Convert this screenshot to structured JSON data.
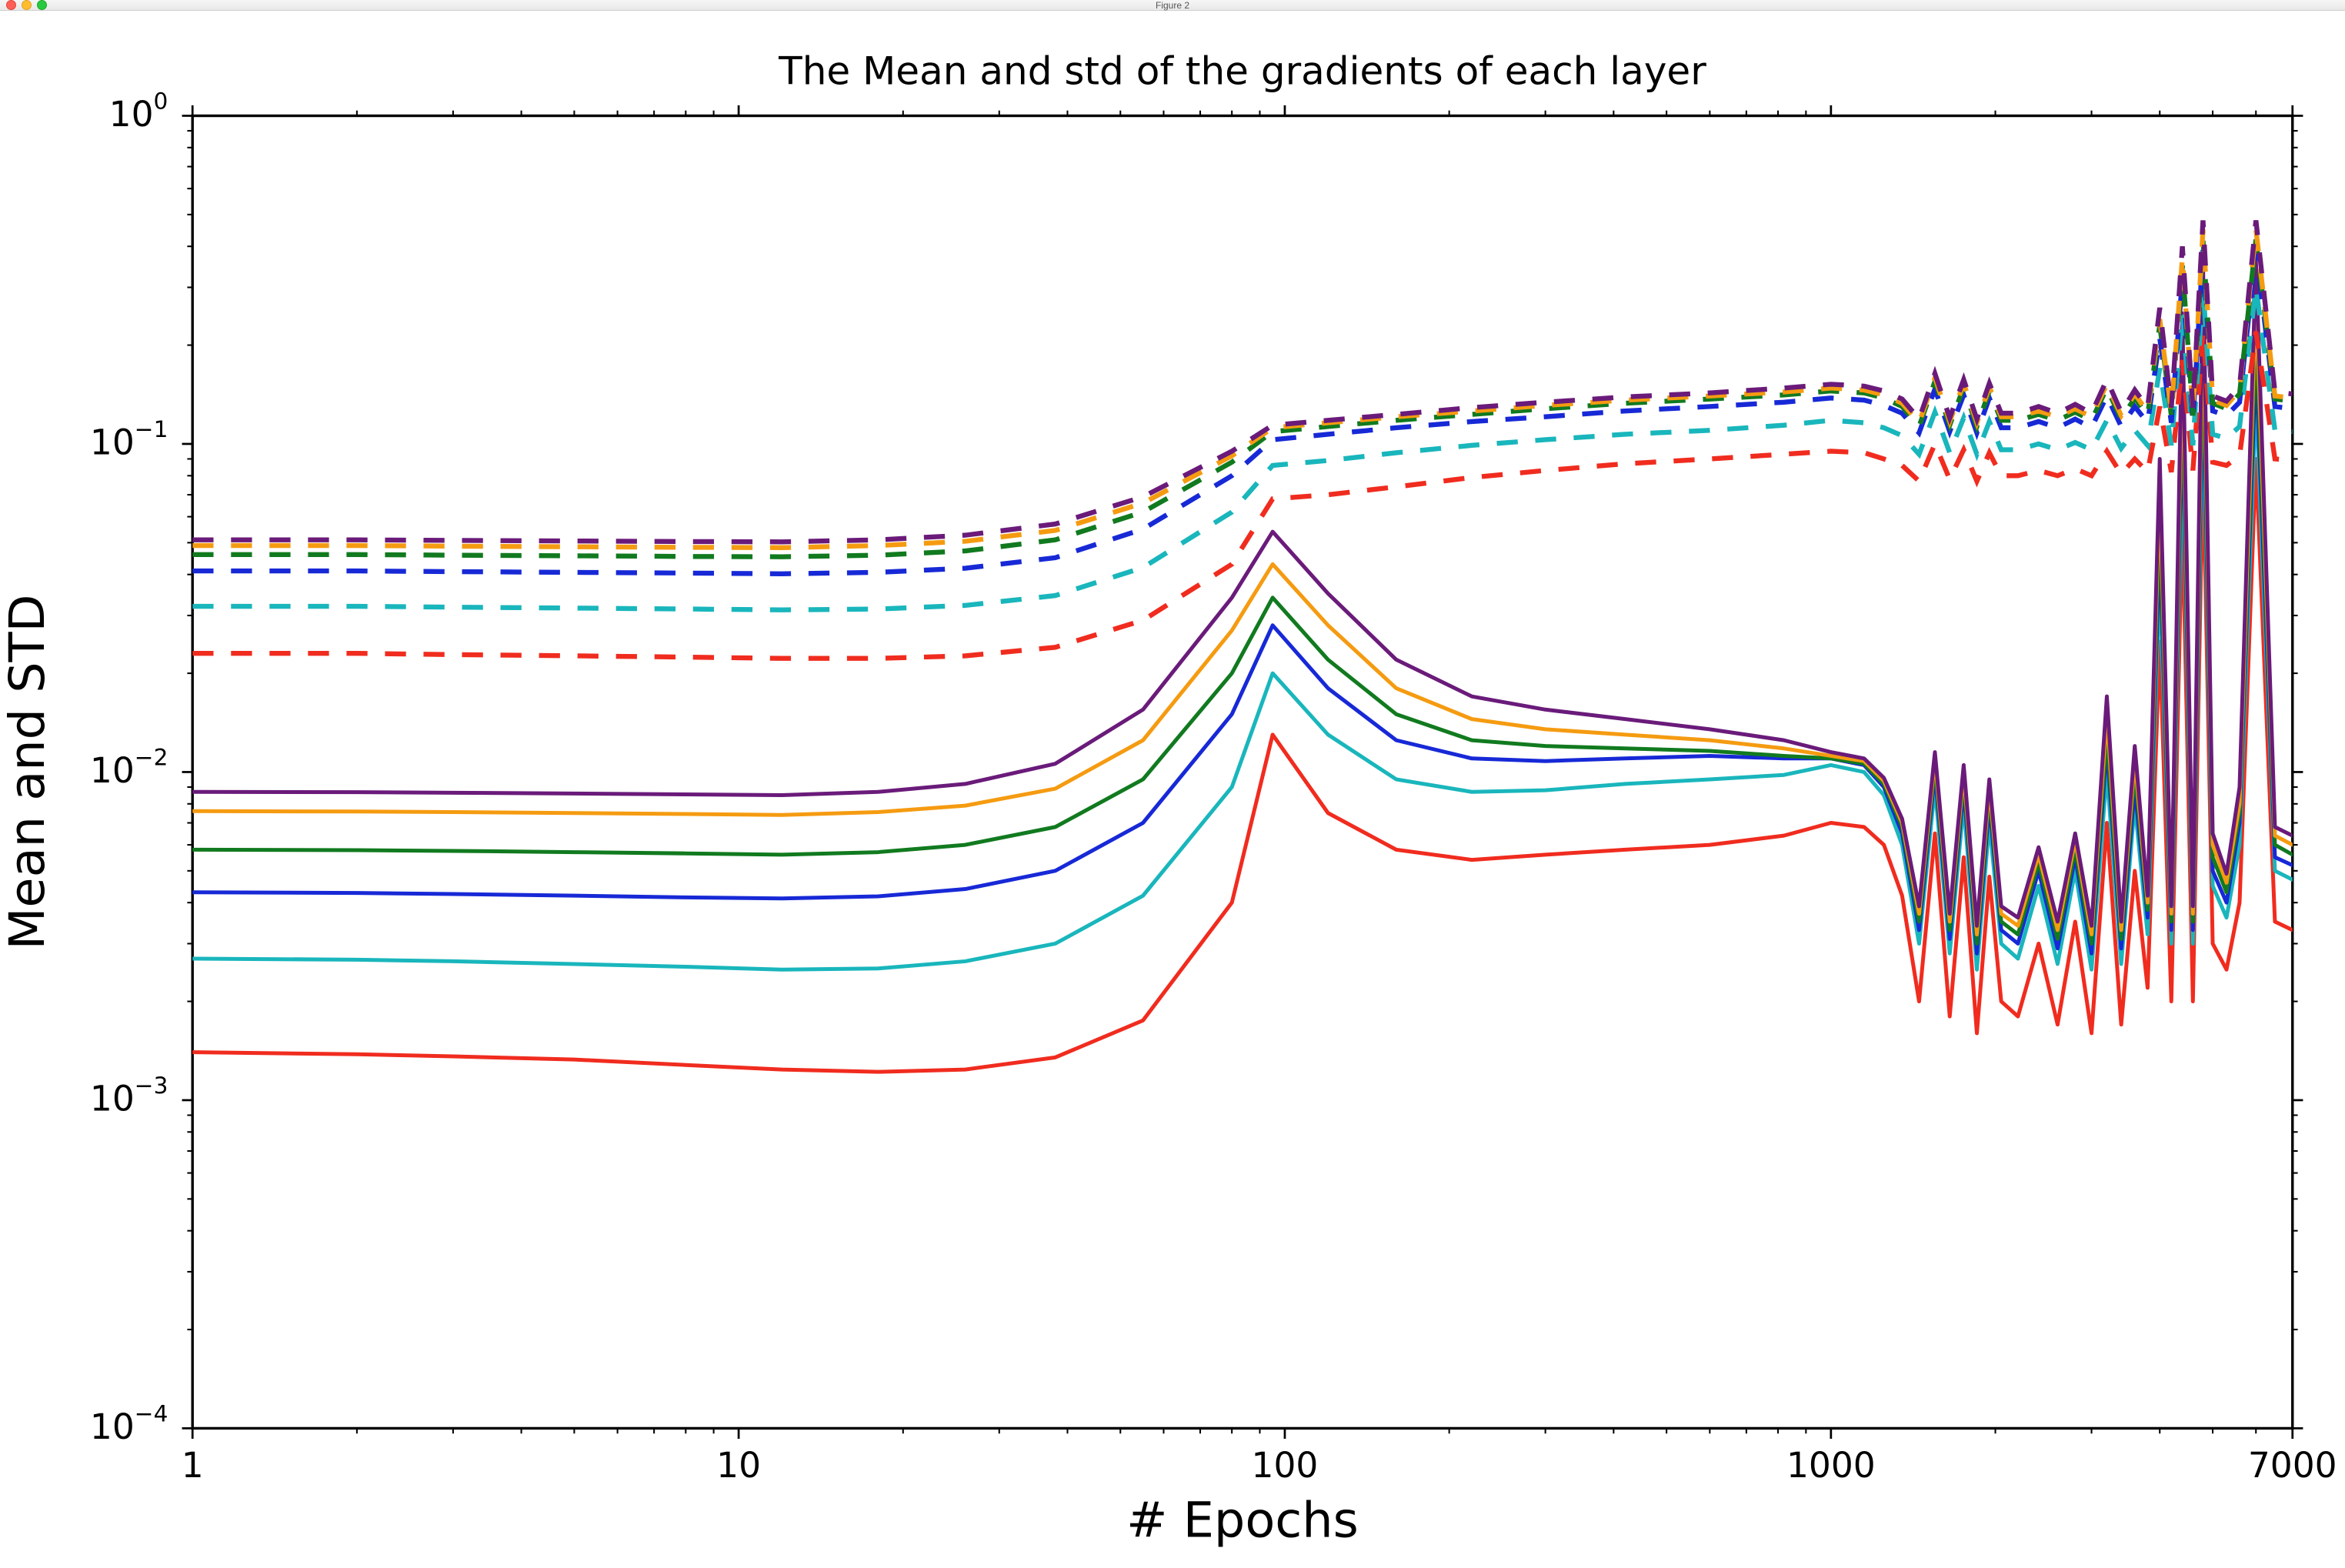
{
  "window": {
    "title": "Figure 2",
    "traffic_light_colors": {
      "red": "#ff5f57",
      "yellow": "#ffbd2e",
      "green": "#28c940"
    }
  },
  "chart": {
    "type": "line",
    "title": "The Mean and std of the gradients of each layer",
    "xlabel": "# Epochs",
    "ylabel": "Mean and STD",
    "title_fontsize": 22,
    "label_fontsize": 28,
    "tick_fontsize": 20,
    "background_color": "#ffffff",
    "axis_color": "#000000",
    "x_scale": "log",
    "y_scale": "log",
    "xlim": [
      1,
      7000
    ],
    "ylim": [
      0.0001,
      1
    ],
    "xticks": [
      1,
      10,
      100,
      1000,
      7000
    ],
    "xtick_labels": [
      "1",
      "10",
      "100",
      "1000",
      "7000"
    ],
    "yticks": [
      0.0001,
      0.001,
      0.01,
      0.1,
      1
    ],
    "ytick_labels_base": "10",
    "ytick_labels_exp": [
      "−4",
      "−3",
      "−2",
      "−1",
      "0"
    ],
    "solid_line_width": 2.2,
    "dashed_line_width": 2.8,
    "dash_pattern": "12,10",
    "series_colors": {
      "red": "#f02c1f",
      "cyan": "#19b6bc",
      "blue": "#1729d6",
      "green": "#117a1f",
      "orange": "#f59b11",
      "purple": "#6a1b7a"
    },
    "x_epochs": [
      1,
      2,
      3,
      5,
      8,
      12,
      18,
      26,
      38,
      55,
      80,
      95,
      120,
      160,
      220,
      300,
      420,
      600,
      820,
      1000,
      1150,
      1250,
      1350,
      1450,
      1550,
      1650,
      1750,
      1850,
      1950,
      2050,
      2200,
      2400,
      2600,
      2800,
      3000,
      3200,
      3400,
      3600,
      3800,
      4000,
      4200,
      4400,
      4600,
      4800,
      5000,
      5300,
      5600,
      6000,
      6500,
      7000
    ],
    "series_solid": {
      "red": [
        0.0014,
        0.00138,
        0.00136,
        0.00133,
        0.00128,
        0.00124,
        0.00122,
        0.00124,
        0.00135,
        0.00175,
        0.004,
        0.013,
        0.0075,
        0.0058,
        0.0054,
        0.0056,
        0.0058,
        0.006,
        0.0064,
        0.007,
        0.0068,
        0.006,
        0.0042,
        0.002,
        0.0065,
        0.0018,
        0.0055,
        0.0016,
        0.0048,
        0.002,
        0.0018,
        0.003,
        0.0017,
        0.0035,
        0.0016,
        0.007,
        0.0017,
        0.005,
        0.0022,
        0.025,
        0.002,
        0.06,
        0.002,
        0.09,
        0.003,
        0.0025,
        0.004,
        0.09,
        0.0035,
        0.0033
      ],
      "cyan": [
        0.0027,
        0.00268,
        0.00265,
        0.0026,
        0.00255,
        0.0025,
        0.00252,
        0.00265,
        0.003,
        0.0042,
        0.009,
        0.02,
        0.013,
        0.0095,
        0.0087,
        0.0088,
        0.0092,
        0.0095,
        0.0098,
        0.0105,
        0.01,
        0.0085,
        0.006,
        0.003,
        0.009,
        0.0028,
        0.008,
        0.0025,
        0.007,
        0.003,
        0.0027,
        0.0045,
        0.0026,
        0.005,
        0.0025,
        0.01,
        0.0026,
        0.008,
        0.0032,
        0.04,
        0.003,
        0.1,
        0.003,
        0.14,
        0.0045,
        0.0036,
        0.006,
        0.14,
        0.005,
        0.0047
      ],
      "blue": [
        0.0043,
        0.00428,
        0.00425,
        0.0042,
        0.00415,
        0.00412,
        0.00418,
        0.0044,
        0.005,
        0.007,
        0.015,
        0.028,
        0.018,
        0.0125,
        0.011,
        0.0108,
        0.011,
        0.0112,
        0.011,
        0.011,
        0.0105,
        0.009,
        0.0065,
        0.0033,
        0.01,
        0.0031,
        0.009,
        0.0028,
        0.008,
        0.0033,
        0.003,
        0.005,
        0.0029,
        0.0055,
        0.0028,
        0.012,
        0.0029,
        0.009,
        0.0036,
        0.05,
        0.0033,
        0.13,
        0.0033,
        0.18,
        0.005,
        0.004,
        0.007,
        0.18,
        0.0055,
        0.0052
      ],
      "green": [
        0.0058,
        0.00578,
        0.00575,
        0.0057,
        0.00565,
        0.0056,
        0.0057,
        0.006,
        0.0068,
        0.0095,
        0.02,
        0.034,
        0.022,
        0.015,
        0.0125,
        0.012,
        0.0118,
        0.0116,
        0.0112,
        0.011,
        0.0106,
        0.0092,
        0.0068,
        0.0035,
        0.0105,
        0.0033,
        0.0095,
        0.003,
        0.0085,
        0.0035,
        0.0032,
        0.0053,
        0.0031,
        0.0058,
        0.003,
        0.013,
        0.0031,
        0.01,
        0.0038,
        0.06,
        0.0035,
        0.16,
        0.0035,
        0.22,
        0.0055,
        0.0043,
        0.0075,
        0.22,
        0.006,
        0.0056
      ],
      "orange": [
        0.0076,
        0.00758,
        0.00755,
        0.0075,
        0.00745,
        0.0074,
        0.00755,
        0.0079,
        0.0089,
        0.0125,
        0.027,
        0.043,
        0.028,
        0.018,
        0.0145,
        0.0135,
        0.013,
        0.0125,
        0.0118,
        0.0112,
        0.0108,
        0.0094,
        0.007,
        0.0037,
        0.011,
        0.0035,
        0.01,
        0.0032,
        0.009,
        0.0037,
        0.0034,
        0.0056,
        0.0033,
        0.0062,
        0.0032,
        0.015,
        0.0033,
        0.011,
        0.004,
        0.075,
        0.0037,
        0.2,
        0.0037,
        0.28,
        0.006,
        0.0046,
        0.008,
        0.28,
        0.0064,
        0.006
      ],
      "purple": [
        0.0087,
        0.00868,
        0.00865,
        0.0086,
        0.00855,
        0.0085,
        0.0087,
        0.0092,
        0.0106,
        0.0155,
        0.034,
        0.054,
        0.035,
        0.022,
        0.017,
        0.0155,
        0.0145,
        0.0135,
        0.0125,
        0.0115,
        0.011,
        0.0096,
        0.0072,
        0.0039,
        0.0115,
        0.0037,
        0.0105,
        0.0034,
        0.0095,
        0.0039,
        0.0036,
        0.0059,
        0.0035,
        0.0065,
        0.0034,
        0.017,
        0.0035,
        0.012,
        0.0042,
        0.09,
        0.0039,
        0.25,
        0.0039,
        0.36,
        0.0065,
        0.0049,
        0.009,
        0.36,
        0.0068,
        0.0064
      ]
    },
    "series_dashed": {
      "red": [
        0.023,
        0.023,
        0.0228,
        0.0226,
        0.0224,
        0.0222,
        0.0222,
        0.0226,
        0.024,
        0.029,
        0.043,
        0.068,
        0.07,
        0.074,
        0.079,
        0.083,
        0.087,
        0.09,
        0.093,
        0.095,
        0.094,
        0.09,
        0.086,
        0.077,
        0.1,
        0.078,
        0.096,
        0.077,
        0.094,
        0.08,
        0.08,
        0.083,
        0.08,
        0.084,
        0.08,
        0.095,
        0.081,
        0.09,
        0.082,
        0.13,
        0.082,
        0.18,
        0.083,
        0.22,
        0.088,
        0.086,
        0.092,
        0.22,
        0.09,
        0.089
      ],
      "cyan": [
        0.032,
        0.032,
        0.0318,
        0.0316,
        0.0314,
        0.0312,
        0.0314,
        0.0322,
        0.0345,
        0.042,
        0.062,
        0.086,
        0.089,
        0.094,
        0.099,
        0.103,
        0.107,
        0.11,
        0.114,
        0.118,
        0.116,
        0.112,
        0.106,
        0.093,
        0.125,
        0.094,
        0.12,
        0.093,
        0.117,
        0.096,
        0.096,
        0.1,
        0.096,
        0.101,
        0.096,
        0.118,
        0.097,
        0.11,
        0.099,
        0.17,
        0.099,
        0.25,
        0.099,
        0.3,
        0.107,
        0.104,
        0.113,
        0.3,
        0.11,
        0.109
      ],
      "blue": [
        0.041,
        0.041,
        0.0408,
        0.0406,
        0.0404,
        0.0402,
        0.0406,
        0.0418,
        0.045,
        0.055,
        0.08,
        0.103,
        0.107,
        0.112,
        0.117,
        0.121,
        0.126,
        0.13,
        0.134,
        0.138,
        0.136,
        0.131,
        0.124,
        0.108,
        0.147,
        0.109,
        0.141,
        0.108,
        0.138,
        0.112,
        0.112,
        0.117,
        0.112,
        0.119,
        0.112,
        0.14,
        0.113,
        0.13,
        0.116,
        0.21,
        0.116,
        0.32,
        0.116,
        0.39,
        0.126,
        0.122,
        0.134,
        0.39,
        0.13,
        0.128
      ],
      "green": [
        0.046,
        0.046,
        0.0458,
        0.0456,
        0.0454,
        0.0453,
        0.0458,
        0.0472,
        0.051,
        0.062,
        0.088,
        0.109,
        0.113,
        0.118,
        0.123,
        0.128,
        0.133,
        0.137,
        0.141,
        0.145,
        0.143,
        0.138,
        0.13,
        0.113,
        0.155,
        0.114,
        0.149,
        0.113,
        0.145,
        0.118,
        0.118,
        0.123,
        0.118,
        0.125,
        0.118,
        0.148,
        0.119,
        0.138,
        0.122,
        0.23,
        0.122,
        0.35,
        0.122,
        0.42,
        0.133,
        0.128,
        0.142,
        0.42,
        0.137,
        0.135
      ],
      "orange": [
        0.049,
        0.049,
        0.0488,
        0.0486,
        0.0484,
        0.0483,
        0.049,
        0.0505,
        0.0545,
        0.066,
        0.092,
        0.112,
        0.116,
        0.121,
        0.126,
        0.131,
        0.136,
        0.14,
        0.144,
        0.148,
        0.146,
        0.141,
        0.133,
        0.116,
        0.159,
        0.117,
        0.153,
        0.116,
        0.149,
        0.121,
        0.121,
        0.126,
        0.121,
        0.128,
        0.121,
        0.152,
        0.122,
        0.142,
        0.125,
        0.24,
        0.125,
        0.37,
        0.125,
        0.45,
        0.136,
        0.131,
        0.146,
        0.45,
        0.14,
        0.138
      ],
      "purple": [
        0.051,
        0.051,
        0.0508,
        0.0506,
        0.0504,
        0.0503,
        0.051,
        0.0527,
        0.057,
        0.069,
        0.095,
        0.114,
        0.118,
        0.123,
        0.129,
        0.134,
        0.139,
        0.143,
        0.148,
        0.152,
        0.15,
        0.145,
        0.137,
        0.119,
        0.164,
        0.12,
        0.157,
        0.119,
        0.153,
        0.124,
        0.124,
        0.13,
        0.124,
        0.132,
        0.124,
        0.157,
        0.125,
        0.146,
        0.129,
        0.26,
        0.129,
        0.4,
        0.129,
        0.48,
        0.14,
        0.135,
        0.15,
        0.48,
        0.144,
        0.142
      ]
    },
    "series_order_solid": [
      "red",
      "cyan",
      "blue",
      "green",
      "orange",
      "purple"
    ],
    "series_order_dashed": [
      "red",
      "cyan",
      "blue",
      "green",
      "orange",
      "purple"
    ]
  }
}
